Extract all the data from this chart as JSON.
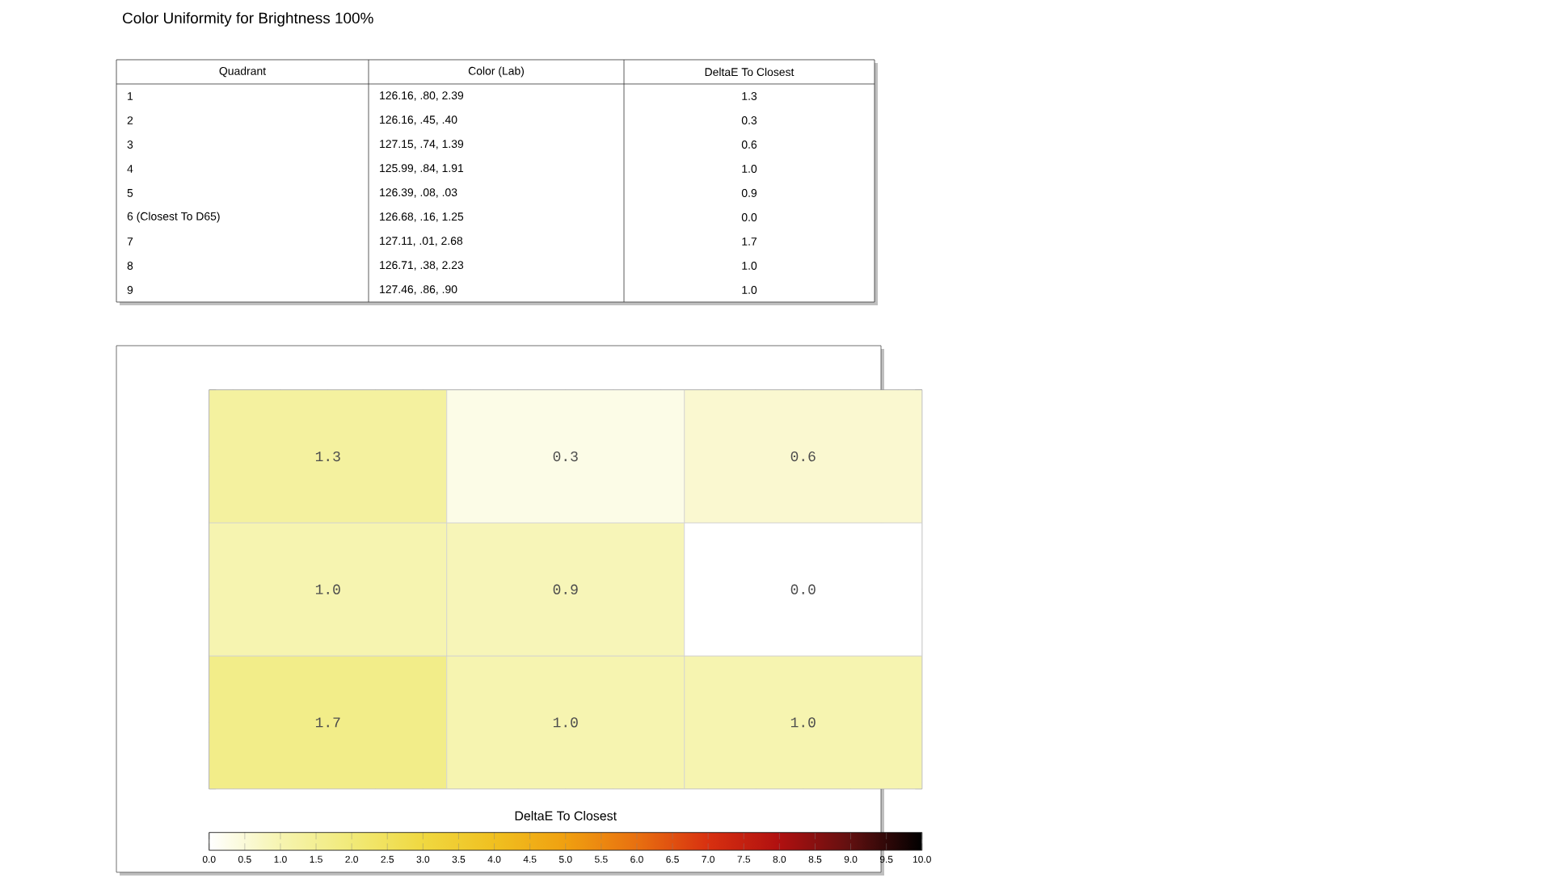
{
  "chart_data": [
    {
      "type": "other",
      "title": "Color Uniformity for Brightness 100%",
      "categories": [
        "Quadrant",
        "Color (Lab)",
        "DeltaE To Closest"
      ],
      "annotations": [
        "1",
        "126.16, .80, 2.39",
        "1.3",
        "2",
        "126.16, .45, .40",
        "0.3",
        "3",
        "127.15, .74, 1.39",
        "0.6",
        "4",
        "125.99, .84, 1.91",
        "1.0",
        "5",
        "126.39, .08, .03",
        "0.9",
        "6 (Closest To D65)",
        "126.68, .16, 1.25",
        "0.0",
        "7",
        "127.11, .01, 2.68",
        "1.7",
        "8",
        "126.71, .38, 2.23",
        "1.0",
        "9",
        "127.46, .86, .90",
        "1.0"
      ]
    },
    {
      "type": "heatmap",
      "categories": [
        null,
        null,
        null
      ],
      "y_categories": [
        null,
        null,
        null
      ],
      "cells": [
        [
          1.3,
          0.3,
          0.6
        ],
        [
          1.0,
          0.9,
          0.0
        ],
        [
          1.7,
          1.0,
          1.0
        ]
      ],
      "cell_labels": [
        [
          "1.3",
          "0.3",
          "0.6"
        ],
        [
          "1.0",
          "0.9",
          "0.0"
        ],
        [
          "1.7",
          "1.0",
          "1.0"
        ]
      ],
      "clabel": "DeltaE To Closest",
      "clim": [
        0,
        10
      ],
      "cticks": [
        {
          "value": 0,
          "label": "0.0"
        },
        {
          "value": 0.5,
          "label": "0.5"
        },
        {
          "value": 1,
          "label": "1.0"
        },
        {
          "value": 1.5,
          "label": "1.5"
        },
        {
          "value": 2,
          "label": "2.0"
        },
        {
          "value": 2.5,
          "label": "2.5"
        },
        {
          "value": 3,
          "label": "3.0"
        },
        {
          "value": 3.5,
          "label": "3.5"
        },
        {
          "value": 4,
          "label": "4.0"
        },
        {
          "value": 4.5,
          "label": "4.5"
        },
        {
          "value": 5,
          "label": "5.0"
        },
        {
          "value": 5.5,
          "label": "5.5"
        },
        {
          "value": 6,
          "label": "6.0"
        },
        {
          "value": 6.5,
          "label": "6.5"
        },
        {
          "value": 7,
          "label": "7.0"
        },
        {
          "value": 7.5,
          "label": "7.5"
        },
        {
          "value": 8,
          "label": "8.0"
        },
        {
          "value": 8.5,
          "label": "8.5"
        },
        {
          "value": 9,
          "label": "9.0"
        },
        {
          "value": 9.5,
          "label": "9.5"
        },
        {
          "value": 10,
          "label": "10.0"
        }
      ]
    }
  ]
}
